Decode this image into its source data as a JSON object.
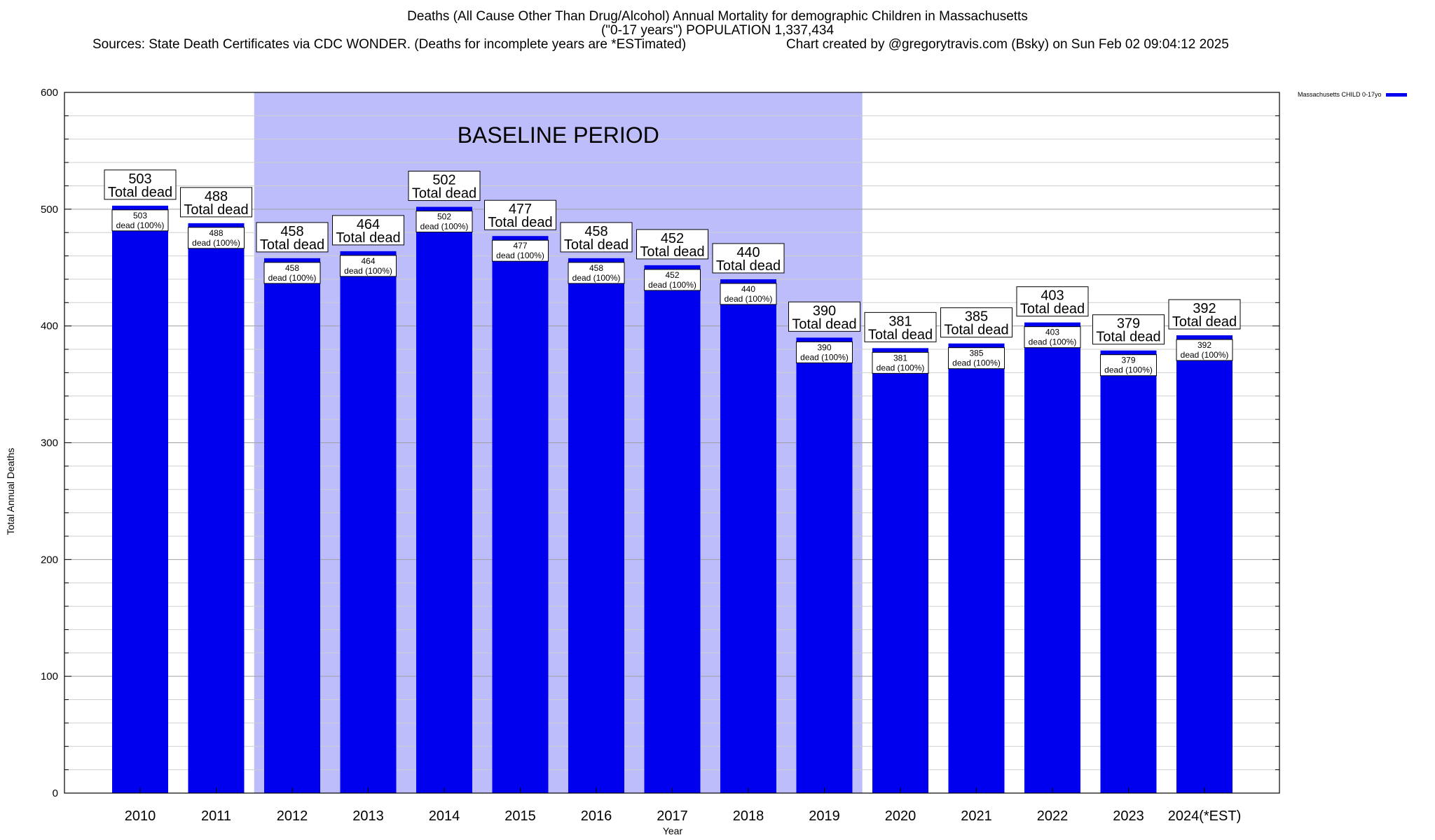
{
  "title": {
    "line1": "Deaths (All Cause Other Than Drug/Alcohol) Annual Mortality for demographic Children in Massachusetts",
    "line2": "(\"0-17 years\") POPULATION 1,337,434",
    "sources": "Sources: State Death Certificates via CDC WONDER. (Deaths for incomplete years are *ESTimated)",
    "credit": "Chart created by @gregorytravis.com (Bsky) on Sun Feb 02 09:04:12 2025"
  },
  "legend": {
    "label": "Massachusetts CHILD 0-17yo",
    "color": "#0000ee"
  },
  "chart_data": {
    "type": "bar",
    "title": "Deaths (All Cause Other Than Drug/Alcohol) Annual Mortality for demographic Children in Massachusetts",
    "xlabel": "Year",
    "ylabel": "Total Annual Deaths",
    "ylim": [
      0,
      600
    ],
    "yticks": [
      0,
      100,
      200,
      300,
      400,
      500,
      600
    ],
    "grid": true,
    "bar_color": "#0000ee",
    "baseline_color": "#bdbdfb",
    "baseline_label": "BASELINE PERIOD",
    "baseline_range": [
      "2012",
      "2019"
    ],
    "total_label": "Total dead",
    "inner_label_suffix": "dead (100%)",
    "categories": [
      "2010",
      "2011",
      "2012",
      "2013",
      "2014",
      "2015",
      "2016",
      "2017",
      "2018",
      "2019",
      "2020",
      "2021",
      "2022",
      "2023",
      "2024(*EST)"
    ],
    "series": [
      {
        "name": "Massachusetts CHILD 0-17yo",
        "values": [
          503,
          488,
          458,
          464,
          502,
          477,
          458,
          452,
          440,
          390,
          381,
          385,
          403,
          379,
          392
        ]
      }
    ]
  }
}
